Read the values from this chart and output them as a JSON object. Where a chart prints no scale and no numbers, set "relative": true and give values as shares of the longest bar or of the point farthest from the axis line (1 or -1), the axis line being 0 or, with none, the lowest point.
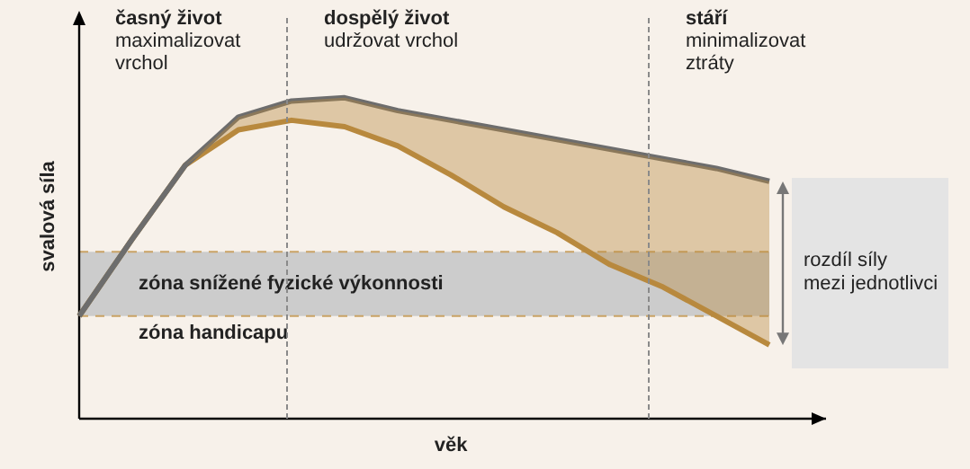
{
  "chart_data": {
    "type": "line",
    "relative": true,
    "xlabel": "věk",
    "ylabel": "svalová síla",
    "categories": [
      null,
      null,
      null,
      null,
      null,
      null,
      null,
      null,
      null,
      null,
      null,
      null,
      null,
      null,
      null
    ],
    "series": [
      {
        "color": "#6d6d6d",
        "values": [
          0.32,
          0.56,
          0.79,
          0.94,
          0.99,
          1,
          0.96,
          0.93,
          0.9,
          0.87,
          0.84,
          0.81,
          0.78,
          0.74,
          null
        ]
      },
      {
        "color": "#b8893e",
        "values": [
          0.32,
          0.56,
          0.79,
          0.9,
          0.93,
          0.91,
          0.85,
          0.76,
          0.66,
          0.58,
          0.48,
          0.41,
          0.32,
          0.23,
          null
        ],
        "lower": [
          0.32,
          0.56,
          0.79,
          0.9,
          0.93,
          0.91,
          0.85,
          0.76,
          0.66,
          0.58,
          0.48,
          0.41,
          0.32,
          0.23,
          null
        ],
        "upper": [
          0.32,
          0.56,
          0.79,
          0.94,
          0.99,
          1,
          0.96,
          0.93,
          0.9,
          0.87,
          0.84,
          0.81,
          0.78,
          0.74,
          null
        ]
      }
    ],
    "ref_lines": [
      {
        "axis": "y",
        "value": 0.32,
        "label": "zóna handicapu",
        "color": "#c9a266",
        "line_style": "dashed"
      },
      {
        "axis": "y",
        "value": 0.52,
        "color": "#c9a266",
        "line_style": "dashed"
      }
    ],
    "bands": [
      {
        "axis": "y",
        "from": 0.32,
        "to": 0.52,
        "label": "zóna snížené fyzické výkonnosti",
        "color": "#cccccc"
      }
    ],
    "annotations": [
      "časný život\nmaximalizovat\nvrchol",
      "dospělý život\nudržovat vrchol",
      "stáří\nminimalizovat\nztráty",
      "rozdíl síly\nmezi jednotlivci"
    ],
    "line_style": "solid",
    "marker": "none",
    "legend": false
  }
}
